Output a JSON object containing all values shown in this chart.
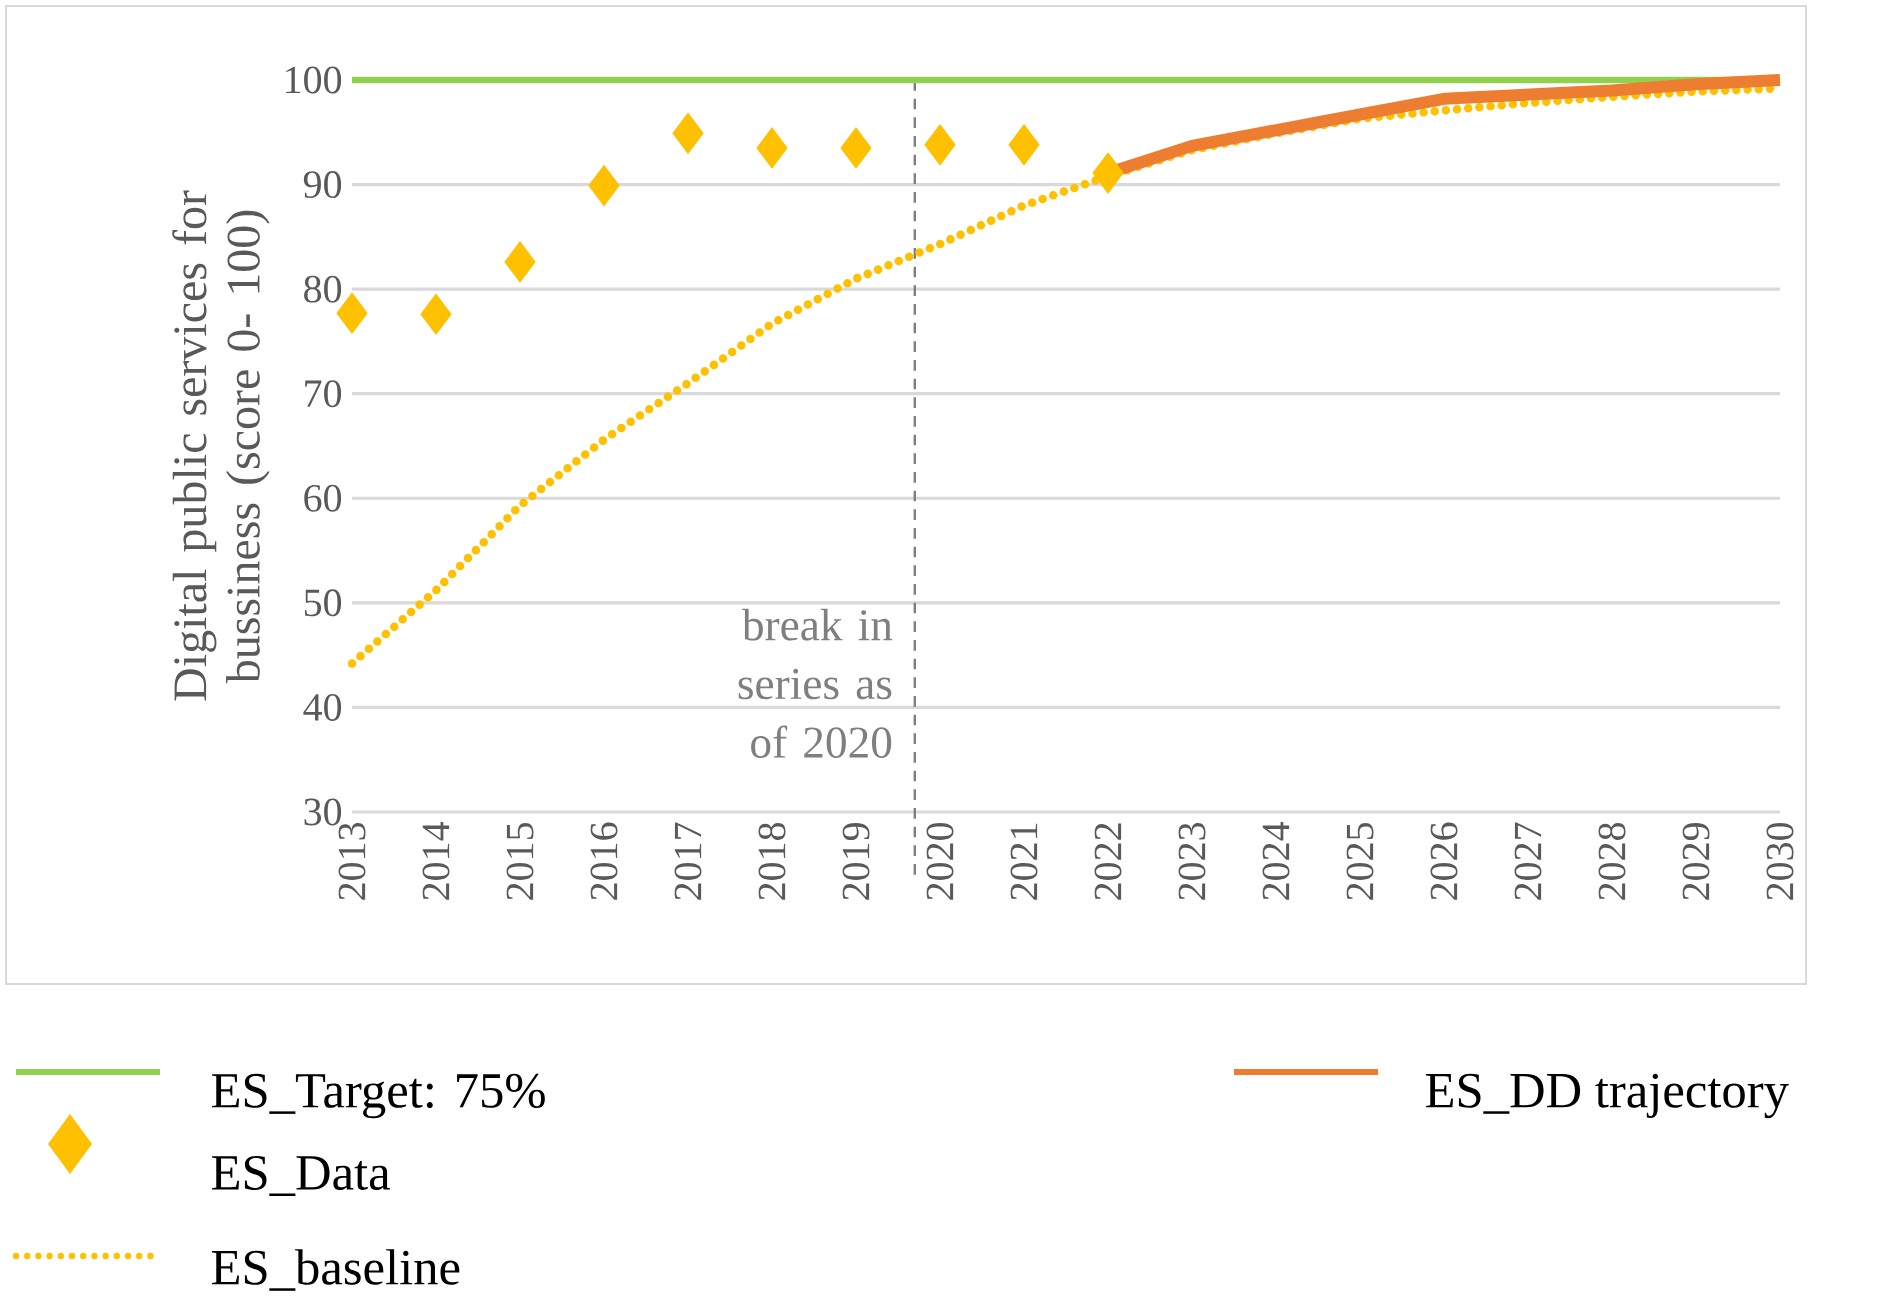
{
  "chart_data": {
    "type": "line",
    "ylabel": "Digital public services for bussiness (score 0- 100)",
    "xlim": [
      2013,
      2030
    ],
    "xticks": [
      2013,
      2014,
      2015,
      2016,
      2017,
      2018,
      2019,
      2020,
      2021,
      2022,
      2023,
      2024,
      2025,
      2026,
      2027,
      2028,
      2029,
      2030
    ],
    "ylim": [
      30,
      100
    ],
    "yticks": [
      30,
      40,
      50,
      60,
      70,
      80,
      90,
      100
    ],
    "grid": "y",
    "legend": "bottom",
    "x": [
      2013,
      2014,
      2015,
      2016,
      2017,
      2018,
      2019,
      2020,
      2021,
      2022,
      2023,
      2024,
      2025,
      2026,
      2027,
      2028,
      2029,
      2030
    ],
    "series": [
      {
        "name": "ES_Target: 75%",
        "type": "line",
        "color": "#92d050",
        "line_style": "solid",
        "values": [
          100,
          100,
          100,
          100,
          100,
          100,
          100,
          100,
          100,
          100,
          100,
          100,
          100,
          100,
          100,
          100,
          100,
          100
        ]
      },
      {
        "name": "ES_Data",
        "type": "scatter",
        "marker": "diamond",
        "color": "#ffc000",
        "x": [
          2013,
          2014,
          2015,
          2016,
          2017,
          2018,
          2019,
          2020,
          2021,
          2022
        ],
        "values": [
          77.7,
          77.6,
          82.6,
          89.9,
          94.9,
          93.5,
          93.5,
          93.8,
          93.8,
          91.1
        ]
      },
      {
        "name": "ES_baseline",
        "type": "line",
        "color": "#ffc000",
        "line_style": "dotted",
        "values": [
          44.2,
          51.2,
          59.3,
          65.6,
          71.0,
          76.7,
          81.0,
          84.3,
          88.0,
          90.8,
          93.3,
          94.9,
          96.3,
          97.1,
          97.8,
          98.4,
          98.9,
          99.2
        ]
      },
      {
        "name": "ES_DD trajectory",
        "type": "line",
        "color": "#ed7d31",
        "line_style": "solid",
        "x": [
          2022,
          2023,
          2024,
          2025,
          2026,
          2027,
          2028,
          2029,
          2030
        ],
        "values": [
          91.1,
          93.7,
          95.2,
          96.7,
          98.2,
          98.6,
          99.0,
          99.6,
          100
        ]
      }
    ],
    "ref_lines": [
      {
        "axis": "x",
        "value": 2019.7,
        "label": "break in series as of 2020",
        "color": "#7f7f7f",
        "line_style": "dashed"
      }
    ]
  }
}
